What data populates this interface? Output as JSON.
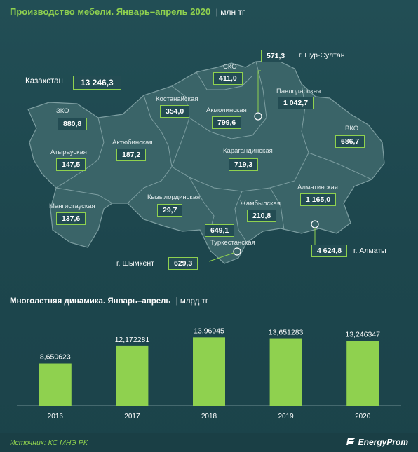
{
  "header": {
    "title": "Производство мебели. Январь–апрель 2020",
    "unit": "| млн тг"
  },
  "map": {
    "country_label": "Казахстан",
    "country_value": "13 246,3",
    "regions": [
      {
        "key": "sko",
        "name": "СКО",
        "value": "411,0"
      },
      {
        "key": "kostanay",
        "name": "Костанайская",
        "value": "354,0"
      },
      {
        "key": "akmola",
        "name": "Акмолинская",
        "value": "799,6"
      },
      {
        "key": "pavlodar",
        "name": "Павлодарская",
        "value": "1 042,7"
      },
      {
        "key": "zko",
        "name": "ЗКО",
        "value": "880,8"
      },
      {
        "key": "aktobe",
        "name": "Актюбинская",
        "value": "187,2"
      },
      {
        "key": "atyrau",
        "name": "Атырауская",
        "value": "147,5"
      },
      {
        "key": "karaganda",
        "name": "Карагандинская",
        "value": "719,3"
      },
      {
        "key": "vko",
        "name": "ВКО",
        "value": "686,7"
      },
      {
        "key": "almaty_reg",
        "name": "Алматинская",
        "value": "1 165,0"
      },
      {
        "key": "mangystau",
        "name": "Мангистауская",
        "value": "137,6"
      },
      {
        "key": "kyzylorda",
        "name": "Кызылординская",
        "value": "29,7"
      },
      {
        "key": "zhambyl",
        "name": "Жамбылская",
        "value": "210,8"
      },
      {
        "key": "turkestan",
        "name": "Туркестанская",
        "value": "649,1"
      }
    ],
    "cities": [
      {
        "key": "nursultan",
        "name": "г. Нур-Султан",
        "value": "571,3"
      },
      {
        "key": "shymkent",
        "name": "г. Шымкент",
        "value": "629,3"
      },
      {
        "key": "almaty",
        "name": "г. Алматы",
        "value": "4 624,8"
      }
    ]
  },
  "dynamics": {
    "title": "Многолетняя динамика. Январь–апрель",
    "unit": "| млрд тг"
  },
  "chart_data": {
    "type": "bar",
    "categories": [
      "2016",
      "2017",
      "2018",
      "2019",
      "2020"
    ],
    "values": [
      8.650623,
      12.172281,
      13.96945,
      13.651283,
      13.246347
    ],
    "value_labels": [
      "8,650623",
      "12,172281",
      "13,96945",
      "13,651283",
      "13,246347"
    ],
    "title": "Многолетняя динамика. Январь–апрель",
    "ylabel": "",
    "xlabel": "",
    "ylim": [
      0,
      16
    ],
    "grid": false,
    "bar_color": "#8fd14f"
  },
  "footer": {
    "source": "Источник: КС МНЭ РК",
    "brand": "EnergyProm"
  },
  "colors": {
    "accent": "#8fd14f",
    "background": "#1f4a50",
    "map_fill": "#3a6468",
    "map_border": "#7d9ea1"
  }
}
